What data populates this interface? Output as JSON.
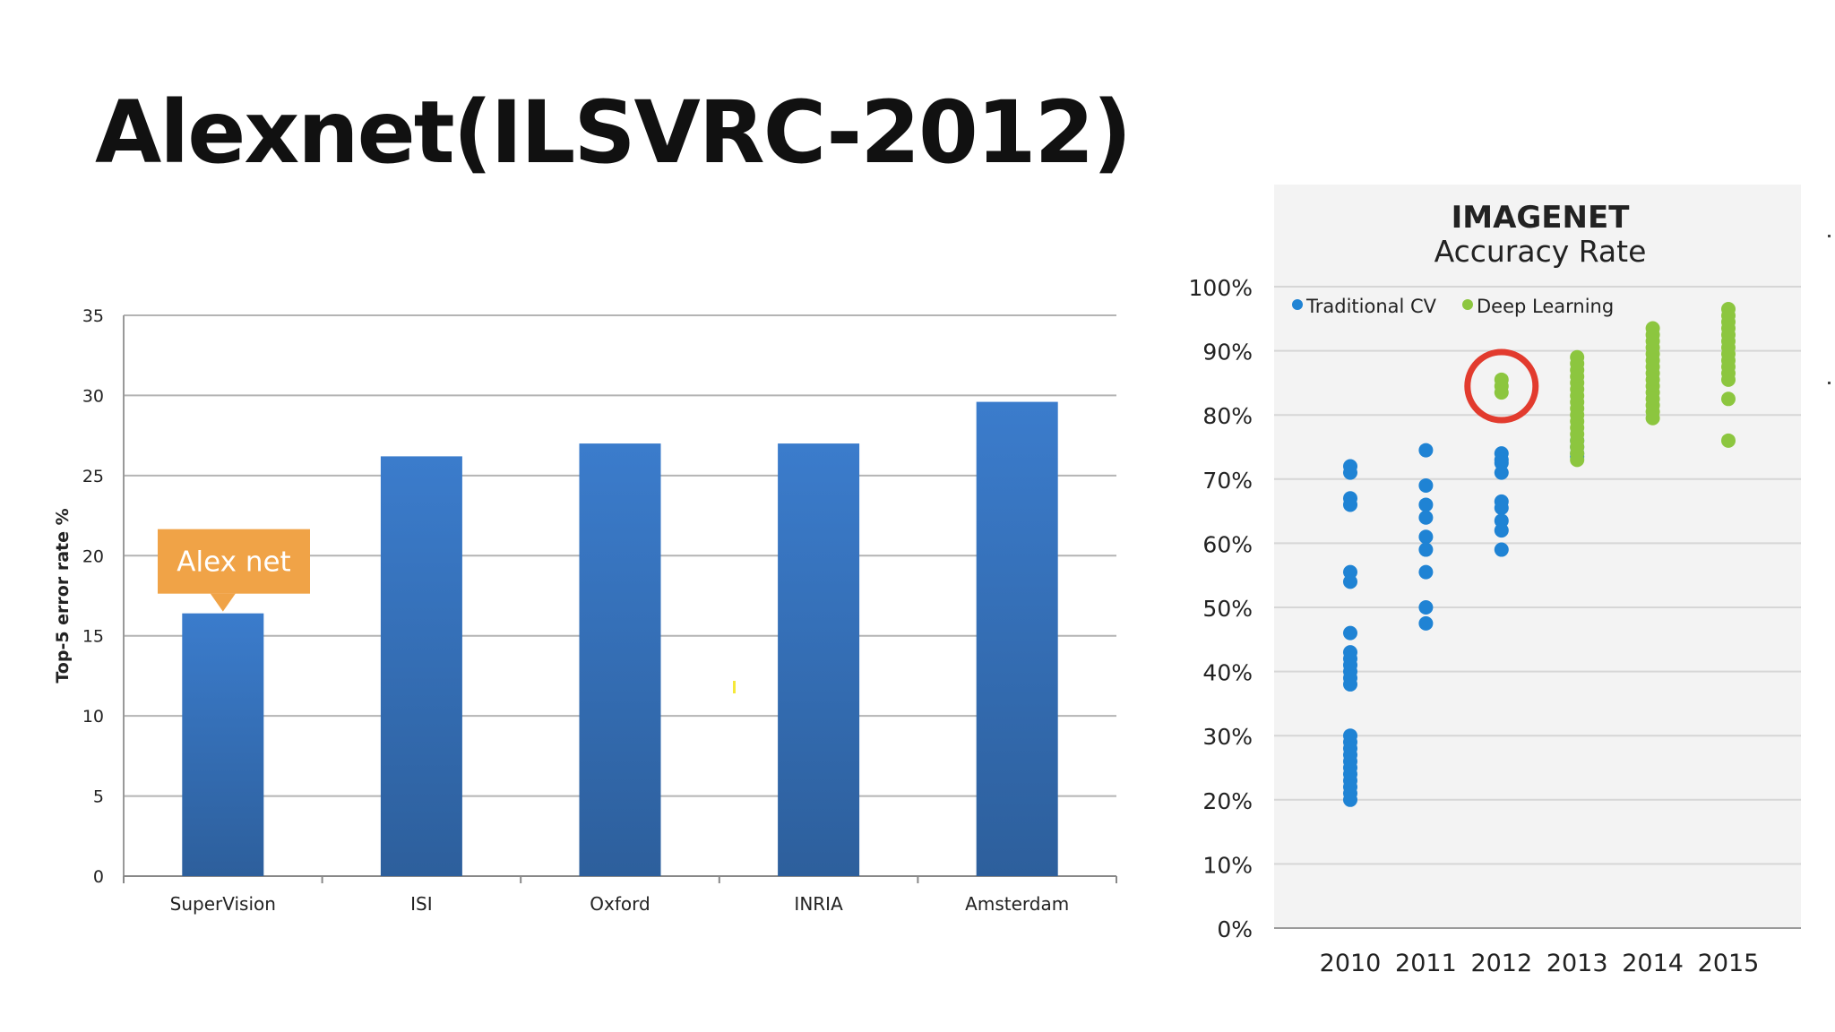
{
  "slide": {
    "title": "Alexnet(ILSVRC-2012)"
  },
  "colors": {
    "bar_top": "#3b7ccc",
    "bar_bottom": "#2d5f9c",
    "callout": "#f0a347",
    "grid": "#b4b4b4",
    "traditional": "#1f83d4",
    "deep": "#8cc63f",
    "highlight": "#e23b2e",
    "panel_bg": "#f3f3f3"
  },
  "chart_data": [
    {
      "type": "bar",
      "title": "",
      "xlabel": "",
      "ylabel": "Top-5 error rate %",
      "ylim": [
        0,
        35
      ],
      "yticks": [
        0,
        5,
        10,
        15,
        20,
        25,
        30,
        35
      ],
      "categories": [
        "SuperVision",
        "ISI",
        "Oxford",
        "INRIA",
        "Amsterdam"
      ],
      "values": [
        16.4,
        26.2,
        27.0,
        27.0,
        29.6
      ],
      "annotations": [
        {
          "text": "Alex net",
          "target": "SuperVision"
        }
      ]
    },
    {
      "type": "scatter",
      "title": "IMAGENET",
      "subtitle": "Accuracy Rate",
      "xlabel": "",
      "ylabel": "",
      "ylim": [
        0,
        100
      ],
      "yticks": [
        "100%",
        "90%",
        "80%",
        "70%",
        "60%",
        "50%",
        "40%",
        "30%",
        "20%",
        "10%",
        "0%"
      ],
      "categories": [
        "2010",
        "2011",
        "2012",
        "2013",
        "2014",
        "2015"
      ],
      "legend": [
        "Traditional CV",
        "Deep Learning"
      ],
      "legend_position": "top",
      "highlight": {
        "category": "2012",
        "series": "Deep Learning",
        "note": "circled"
      },
      "series": [
        {
          "name": "Traditional CV",
          "points": [
            [
              "2010",
              72
            ],
            [
              "2010",
              71
            ],
            [
              "2010",
              67
            ],
            [
              "2010",
              66
            ],
            [
              "2010",
              55.5
            ],
            [
              "2010",
              54
            ],
            [
              "2010",
              46
            ],
            [
              "2010",
              43
            ],
            [
              "2010",
              42
            ],
            [
              "2010",
              41
            ],
            [
              "2010",
              40
            ],
            [
              "2010",
              39
            ],
            [
              "2010",
              38
            ],
            [
              "2010",
              30
            ],
            [
              "2010",
              29
            ],
            [
              "2010",
              28
            ],
            [
              "2010",
              27
            ],
            [
              "2010",
              26
            ],
            [
              "2010",
              25
            ],
            [
              "2010",
              24
            ],
            [
              "2010",
              23
            ],
            [
              "2010",
              22
            ],
            [
              "2010",
              21
            ],
            [
              "2010",
              20
            ],
            [
              "2011",
              74.5
            ],
            [
              "2011",
              69
            ],
            [
              "2011",
              66
            ],
            [
              "2011",
              64
            ],
            [
              "2011",
              61
            ],
            [
              "2011",
              59
            ],
            [
              "2011",
              55.5
            ],
            [
              "2011",
              50
            ],
            [
              "2011",
              47.5
            ],
            [
              "2012",
              74
            ],
            [
              "2012",
              73
            ],
            [
              "2012",
              72.5
            ],
            [
              "2012",
              71
            ],
            [
              "2012",
              66.5
            ],
            [
              "2012",
              65.5
            ],
            [
              "2012",
              63.5
            ],
            [
              "2012",
              62
            ],
            [
              "2012",
              59
            ],
            [
              "2013",
              76
            ],
            [
              "2013",
              75
            ],
            [
              "2013",
              74
            ],
            [
              "2013",
              73.5
            ]
          ]
        },
        {
          "name": "Deep Learning",
          "points": [
            [
              "2012",
              85.5
            ],
            [
              "2012",
              84.5
            ],
            [
              "2012",
              83.5
            ],
            [
              "2013",
              89
            ],
            [
              "2013",
              88
            ],
            [
              "2013",
              87
            ],
            [
              "2013",
              86
            ],
            [
              "2013",
              85
            ],
            [
              "2013",
              84
            ],
            [
              "2013",
              83
            ],
            [
              "2013",
              82
            ],
            [
              "2013",
              81
            ],
            [
              "2013",
              80
            ],
            [
              "2013",
              79
            ],
            [
              "2013",
              78
            ],
            [
              "2013",
              77
            ],
            [
              "2013",
              76
            ],
            [
              "2013",
              75
            ],
            [
              "2013",
              74
            ],
            [
              "2013",
              73
            ],
            [
              "2014",
              93.5
            ],
            [
              "2014",
              92.5
            ],
            [
              "2014",
              91.5
            ],
            [
              "2014",
              90.5
            ],
            [
              "2014",
              89.5
            ],
            [
              "2014",
              88.5
            ],
            [
              "2014",
              87.5
            ],
            [
              "2014",
              86.5
            ],
            [
              "2014",
              85.5
            ],
            [
              "2014",
              84.5
            ],
            [
              "2014",
              83.5
            ],
            [
              "2014",
              82.5
            ],
            [
              "2014",
              81.5
            ],
            [
              "2014",
              80.5
            ],
            [
              "2014",
              79.5
            ],
            [
              "2015",
              96.5
            ],
            [
              "2015",
              95.5
            ],
            [
              "2015",
              94.5
            ],
            [
              "2015",
              93.5
            ],
            [
              "2015",
              92.5
            ],
            [
              "2015",
              91.5
            ],
            [
              "2015",
              90.5
            ],
            [
              "2015",
              89.5
            ],
            [
              "2015",
              88.5
            ],
            [
              "2015",
              87.5
            ],
            [
              "2015",
              86.5
            ],
            [
              "2015",
              85.5
            ],
            [
              "2015",
              82.5
            ],
            [
              "2015",
              76
            ]
          ]
        }
      ]
    }
  ]
}
